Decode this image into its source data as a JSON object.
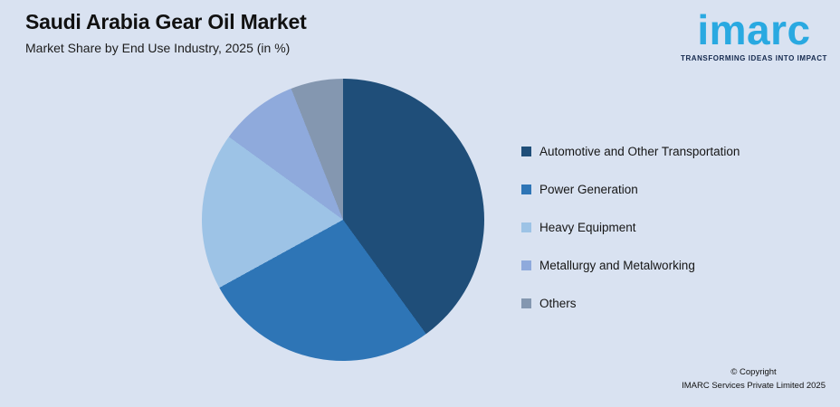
{
  "page": {
    "background": "#D9E2F1"
  },
  "header": {
    "title": "Saudi Arabia Gear Oil Market",
    "subtitle": "Market Share by End Use Industry, 2025 (in %)"
  },
  "logo": {
    "brand": "imarc",
    "tagline": "TRANSFORMING IDEAS INTO IMPACT",
    "brand_color": "#29A9E1",
    "tagline_color": "#14294E"
  },
  "chart_data": {
    "type": "pie",
    "title": "Saudi Arabia Gear Oil Market",
    "subtitle": "Market Share by End Use Industry, 2025 (in %)",
    "unit": "%",
    "start_angle_deg": 0,
    "direction": "clockwise",
    "legend_position": "right",
    "grid": false,
    "items": [
      {
        "label": "Automotive and Other Transportation",
        "value": 40,
        "color": "#1F4E79"
      },
      {
        "label": "Power Generation",
        "value": 27,
        "color": "#2E75B6"
      },
      {
        "label": "Heavy Equipment",
        "value": 18,
        "color": "#9DC3E6"
      },
      {
        "label": "Metallurgy and Metalworking",
        "value": 9,
        "color": "#8FAADC"
      },
      {
        "label": "Others",
        "value": 6,
        "color": "#8497B0"
      }
    ]
  },
  "footer": {
    "copyright_line1": "© Copyright",
    "copyright_line2": "IMARC Services Private Limited 2025"
  }
}
